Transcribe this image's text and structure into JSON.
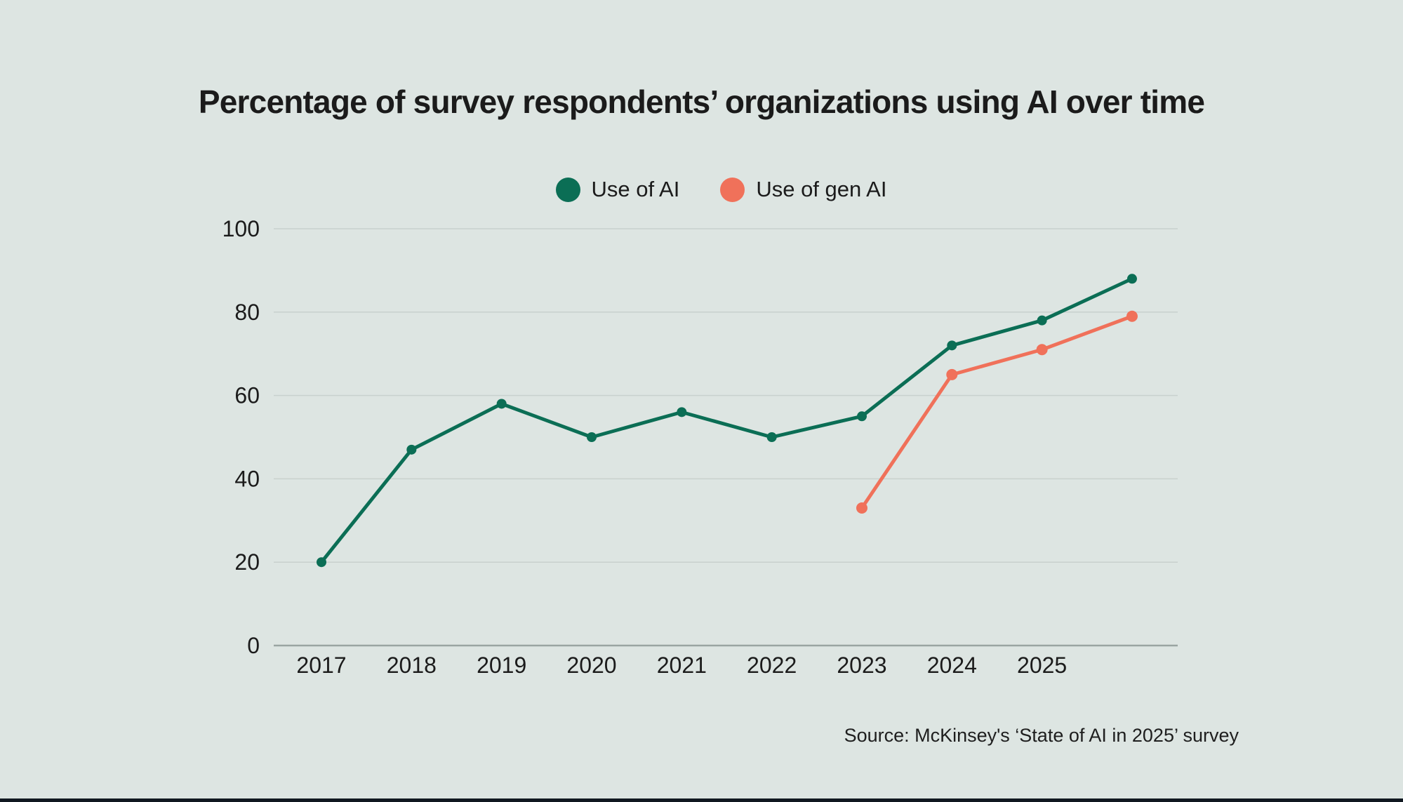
{
  "page": {
    "background_color": "#dde5e2",
    "footer_bar_color": "#101820"
  },
  "title": "Percentage of survey respondents’ organizations using AI over time",
  "legend": {
    "items": [
      {
        "label": "Use of AI",
        "color": "#0b6e55"
      },
      {
        "label": "Use of gen AI",
        "color": "#f0715a"
      }
    ]
  },
  "source": "Source: McKinsey's ‘State of AI in 2025’ survey",
  "chart_data": {
    "type": "line",
    "title": "Percentage of survey respondents’ organizations using AI over time",
    "x_tick_labels": [
      "2017",
      "2018",
      "2019",
      "2020",
      "2021",
      "2022",
      "2023",
      "2024",
      "2025"
    ],
    "x_slot_count": 10,
    "x_note": "10 evenly spaced survey points; the 10th (latest 2025 survey) has no axis label",
    "y_ticks": [
      0,
      20,
      40,
      60,
      80,
      100
    ],
    "ylim": [
      0,
      100
    ],
    "grid": "horizontal gridlines only",
    "legend_position": "top-center",
    "series": [
      {
        "name": "Use of AI",
        "color": "#0b6e55",
        "marker_radius": 7,
        "start_index": 0,
        "values": [
          20,
          47,
          58,
          50,
          56,
          50,
          55,
          72,
          78,
          88
        ]
      },
      {
        "name": "Use of gen AI",
        "color": "#f0715a",
        "marker_radius": 8,
        "start_index": 6,
        "values": [
          33,
          65,
          71,
          79
        ]
      }
    ],
    "axis_color": "#9aa5a2",
    "gridline_color": "#c8d1ce",
    "text_color": "#1b1b1b"
  }
}
